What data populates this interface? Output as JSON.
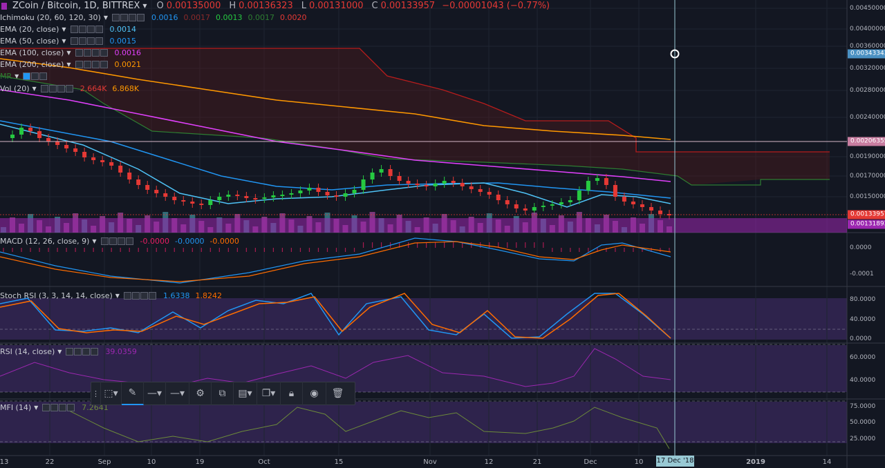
{
  "header": {
    "symbol": "ZCoin / Bitcoin, 1D, BITTREX",
    "o_label": "O",
    "o_value": "0.00135000",
    "h_label": "H",
    "h_value": "0.00136323",
    "l_label": "L",
    "l_value": "0.00131000",
    "c_label": "C",
    "c_value": "0.00133957",
    "change": "−0.00001043 (−0.77%)"
  },
  "indicators": {
    "ichimoku": {
      "name": "Ichimoku (20, 60, 120, 30)",
      "v1": "0.0016",
      "v2": "0.0017",
      "v3": "0.0013",
      "v4": "0.0017",
      "v5": "0.0020"
    },
    "ema20": {
      "name": "EMA (20, close)",
      "value": "0.0014"
    },
    "ema50": {
      "name": "EMA (50, close)",
      "value": "0.0015"
    },
    "ema100": {
      "name": "EMA (100, close)",
      "value": "0.0016"
    },
    "ema200": {
      "name": "EMA (200, close)",
      "value": "0.0021"
    },
    "mr": {
      "name": "MR"
    },
    "vol": {
      "name": "Vol (20)",
      "v1": "2.664K",
      "v2": "6.868K"
    },
    "macd": {
      "name": "MACD (12, 26, close, 9)",
      "v1": "-0.0000",
      "v2": "-0.0000",
      "v3": "-0.0000"
    },
    "stochrsi": {
      "name": "Stoch RSI (3, 3, 14, 14, close)",
      "v1": "1.6338",
      "v2": "1.8242"
    },
    "rsi": {
      "name": "RSI (14, close)",
      "value": "39.0359"
    },
    "mfi": {
      "name": "MFI (14)",
      "value": "7.2641"
    }
  },
  "price_axis": {
    "labels": [
      "0.00450000",
      "0.00400000",
      "0.00360000",
      "0.00320000",
      "0.00280000",
      "0.00240000",
      "0.00190000",
      "0.00170000",
      "0.00150000"
    ],
    "marker_cursor": "0.00343343",
    "marker_line": "0.00206355",
    "marker_last": "0.00133957",
    "marker_low": "0.00131893"
  },
  "macd_axis": [
    "0.0000",
    "-0.0001"
  ],
  "stoch_axis": [
    "80.0000",
    "40.0000",
    "0.0000"
  ],
  "rsi_axis": [
    "60.0000",
    "40.0000"
  ],
  "mfi_axis": [
    "75.0000",
    "50.0000",
    "25.0000"
  ],
  "time_axis": {
    "labels": [
      "13",
      "22",
      "Sep",
      "10",
      "19",
      "Oct",
      "15",
      "Nov",
      "12",
      "21",
      "Dec",
      "10",
      "2019",
      "14"
    ],
    "cursor_date": "17 Dec '18"
  },
  "colors": {
    "bg": "#131722",
    "up": "#26c941",
    "down": "#e53935",
    "ema20": "#4fc3f7",
    "ema50": "#2196f3",
    "ema100": "#e040fb",
    "ema200": "#ff9800",
    "kumo_red": "#b71c1c",
    "kumo_green": "#2e7d32",
    "panel": "#3b2a5e",
    "macd": "#2196f3",
    "signal": "#ff6d00",
    "rsi": "#9c27b0",
    "mfi": "#6d8b3a"
  },
  "toolbar": {
    "icons": [
      "drag-handle-icon",
      "select-area-icon",
      "pencil-icon",
      "line-style-icon",
      "line-width-icon",
      "settings-icon",
      "clone-icon",
      "template-icon",
      "copy-icon",
      "lock-icon",
      "eye-icon",
      "trash-icon"
    ]
  }
}
